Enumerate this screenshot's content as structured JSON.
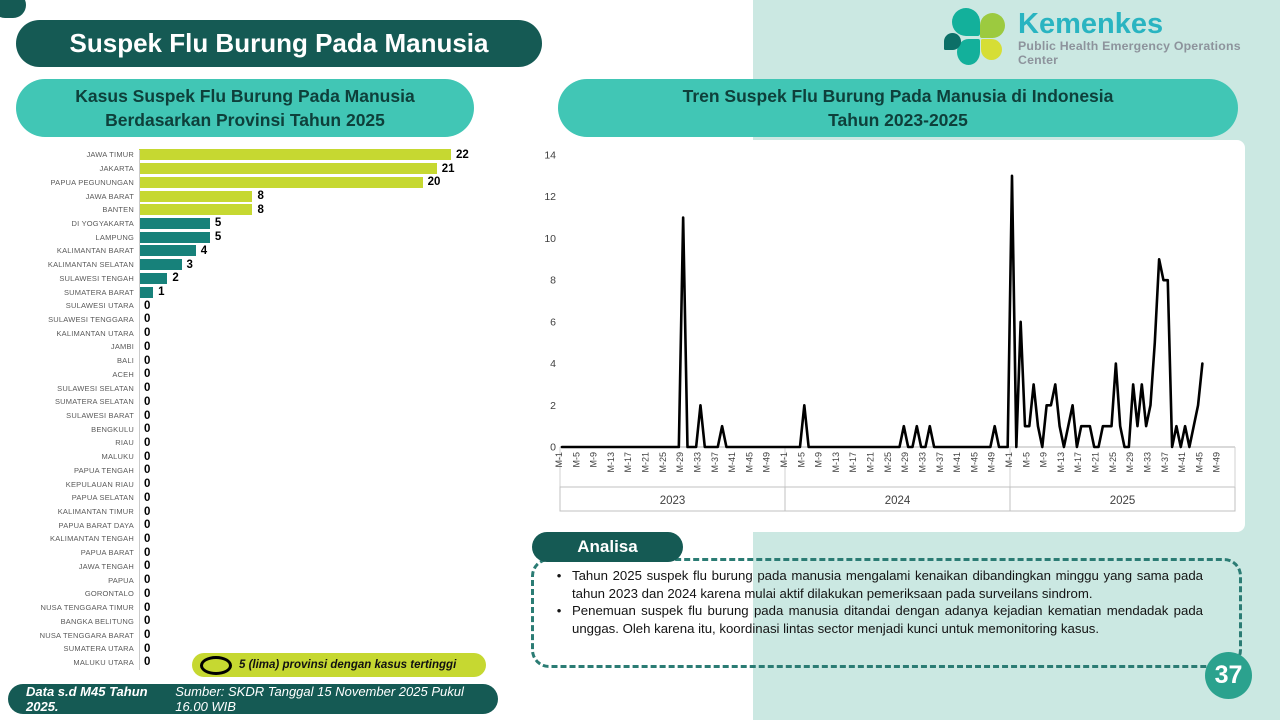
{
  "page": {
    "title": "Suspek Flu Burung Pada Manusia",
    "page_number": "37",
    "footer": {
      "bold": "Data s.d M45 Tahun 2025.",
      "rest": "Sumber: SKDR Tanggal 15 November 2025 Pukul 16.00 WIB"
    }
  },
  "logo": {
    "name": "Kemenkes",
    "subtitle": "Public Health Emergency Operations Center"
  },
  "bar_panel": {
    "title_line1": "Kasus Suspek Flu Burung Pada Manusia",
    "title_line2": "Berdasarkan Provinsi Tahun 2025",
    "legend": "5 (lima) provinsi dengan kasus tertinggi"
  },
  "line_panel": {
    "title_line1": "Tren Suspek Flu Burung Pada Manusia di Indonesia",
    "title_line2": "Tahun 2023-2025"
  },
  "analysis": {
    "label": "Analisa",
    "bullets": [
      "Tahun 2025 suspek flu burung pada manusia mengalami kenaikan dibandingkan minggu yang sama pada tahun 2023 dan 2024 karena mulai aktif dilakukan pemeriksaan pada surveilans sindrom.",
      "Penemuan suspek flu burung pada manusia ditandai dengan adanya kejadian kematian mendadak pada unggas. Oleh karena itu, koordinasi lintas sector menjadi kunci untuk memonitoring kasus."
    ]
  },
  "colors": {
    "dark_teal": "#155a54",
    "header_teal": "#41c6b5",
    "light_teal_bg": "#cbe8e2",
    "bar_highlight": "#c6d831",
    "bar_normal": "#17817a",
    "line_color": "#000000",
    "page_circle": "#2ba28e",
    "brand_text": "#29b4c1"
  },
  "chart_data": [
    {
      "type": "bar",
      "orientation": "horizontal",
      "title": "Kasus Suspek Flu Burung Pada Manusia Berdasarkan Provinsi Tahun 2025",
      "highlight_top_n": 5,
      "categories": [
        "JAWA TIMUR",
        "JAKARTA",
        "PAPUA PEGUNUNGAN",
        "JAWA BARAT",
        "BANTEN",
        "DI YOGYAKARTA",
        "LAMPUNG",
        "KALIMANTAN BARAT",
        "KALIMANTAN SELATAN",
        "SULAWESI TENGAH",
        "SUMATERA BARAT",
        "SULAWESI UTARA",
        "SULAWESI TENGGARA",
        "KALIMANTAN UTARA",
        "JAMBI",
        "BALI",
        "ACEH",
        "SULAWESI SELATAN",
        "SUMATERA SELATAN",
        "SULAWESI BARAT",
        "BENGKULU",
        "RIAU",
        "MALUKU",
        "PAPUA TENGAH",
        "KEPULAUAN RIAU",
        "PAPUA SELATAN",
        "KALIMANTAN TIMUR",
        "PAPUA BARAT DAYA",
        "KALIMANTAN TENGAH",
        "PAPUA BARAT",
        "JAWA TENGAH",
        "PAPUA",
        "GORONTALO",
        "NUSA TENGGARA TIMUR",
        "BANGKA BELITUNG",
        "NUSA TENGGARA BARAT",
        "SUMATERA UTARA",
        "MALUKU UTARA"
      ],
      "values": [
        22,
        21,
        20,
        8,
        8,
        5,
        5,
        4,
        3,
        2,
        1,
        0,
        0,
        0,
        0,
        0,
        0,
        0,
        0,
        0,
        0,
        0,
        0,
        0,
        0,
        0,
        0,
        0,
        0,
        0,
        0,
        0,
        0,
        0,
        0,
        0,
        0,
        0
      ],
      "xlim": [
        0,
        22
      ]
    },
    {
      "type": "line",
      "title": "Tren Suspek Flu Burung Pada Manusia di Indonesia Tahun 2023-2025",
      "ylabel": "",
      "ylim": [
        0,
        14
      ],
      "y_tick_step": 2,
      "weeks_per_year": 52,
      "x_tick_weeks": [
        1,
        5,
        9,
        13,
        17,
        21,
        25,
        29,
        33,
        37,
        41,
        45,
        49
      ],
      "x_tick_prefix": "M-",
      "years": [
        "2023",
        "2024",
        "2025"
      ],
      "series": [
        {
          "name": "2023",
          "values": [
            0,
            0,
            0,
            0,
            0,
            0,
            0,
            0,
            0,
            0,
            0,
            0,
            0,
            0,
            0,
            0,
            0,
            0,
            0,
            0,
            0,
            0,
            0,
            0,
            0,
            0,
            0,
            0,
            11,
            0,
            0,
            0,
            2,
            0,
            0,
            0,
            0,
            1,
            0,
            0,
            0,
            0,
            0,
            0,
            0,
            0,
            0,
            0,
            0,
            0,
            0,
            0
          ]
        },
        {
          "name": "2024",
          "values": [
            0,
            0,
            0,
            0,
            2,
            0,
            0,
            0,
            0,
            0,
            0,
            0,
            0,
            0,
            0,
            0,
            0,
            0,
            0,
            0,
            0,
            0,
            0,
            0,
            0,
            0,
            0,
            1,
            0,
            0,
            1,
            0,
            0,
            1,
            0,
            0,
            0,
            0,
            0,
            0,
            0,
            0,
            0,
            0,
            0,
            0,
            0,
            0,
            1,
            0,
            0,
            0
          ]
        },
        {
          "name": "2025",
          "values": [
            13,
            0,
            6,
            1,
            1,
            3,
            1,
            0,
            2,
            2,
            3,
            1,
            0,
            1,
            2,
            0,
            1,
            1,
            1,
            0,
            0,
            1,
            1,
            1,
            4,
            1,
            0,
            0,
            3,
            1,
            3,
            1,
            2,
            5,
            9,
            8,
            8,
            0,
            1,
            0,
            1,
            0,
            1,
            2,
            4
          ]
        }
      ],
      "legend_position": "none",
      "grid": false
    }
  ]
}
